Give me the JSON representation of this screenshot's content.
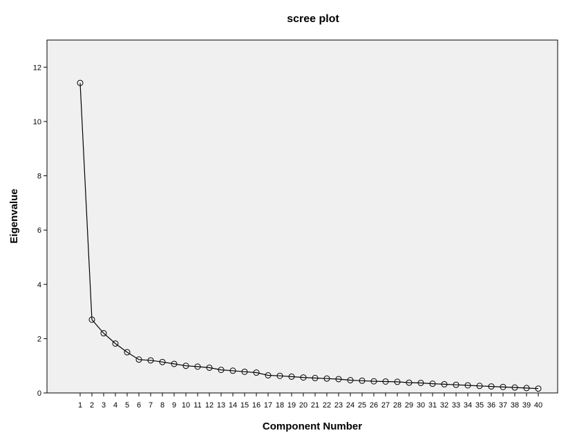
{
  "chart_data": {
    "type": "line",
    "title": "scree plot",
    "xlabel": "Component Number",
    "ylabel": "Eigenvalue",
    "ylim": [
      0,
      13
    ],
    "yticks": [
      0,
      2,
      4,
      6,
      8,
      10,
      12
    ],
    "x": [
      1,
      2,
      3,
      4,
      5,
      6,
      7,
      8,
      9,
      10,
      11,
      12,
      13,
      14,
      15,
      16,
      17,
      18,
      19,
      20,
      21,
      22,
      23,
      24,
      25,
      26,
      27,
      28,
      29,
      30,
      31,
      32,
      33,
      34,
      35,
      36,
      37,
      38,
      39,
      40
    ],
    "series": [
      {
        "values": [
          11.42,
          2.7,
          2.2,
          1.82,
          1.5,
          1.23,
          1.2,
          1.14,
          1.07,
          1.0,
          0.97,
          0.93,
          0.85,
          0.82,
          0.78,
          0.75,
          0.65,
          0.63,
          0.6,
          0.57,
          0.55,
          0.53,
          0.51,
          0.47,
          0.45,
          0.43,
          0.42,
          0.41,
          0.38,
          0.37,
          0.34,
          0.32,
          0.3,
          0.28,
          0.26,
          0.24,
          0.22,
          0.2,
          0.18,
          0.16
        ]
      }
    ],
    "grid": false,
    "colors": {
      "plot_background": "#f0f0f0",
      "line": "#000000",
      "marker_edge": "#000000"
    }
  }
}
